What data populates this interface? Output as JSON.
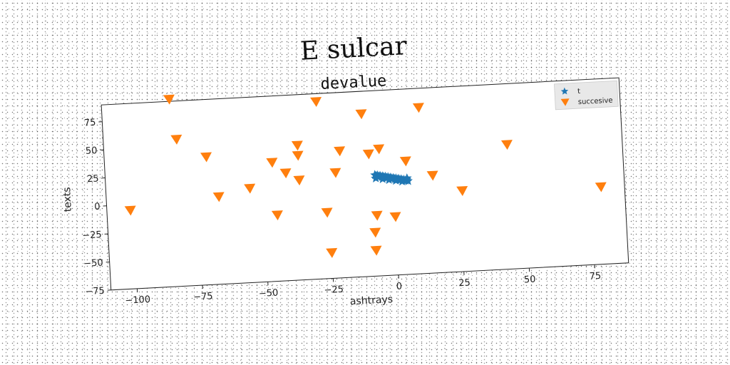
{
  "figure": {
    "suptitle": "E sulcar"
  },
  "colors": {
    "series_t": "#1f77b4",
    "series_succesive": "#ff7f0e",
    "axes": "#222222",
    "legend_bg": "#e8e8e8"
  },
  "chart_data": {
    "type": "scatter",
    "title": "devalue",
    "xlabel": "ashtrays",
    "ylabel": "texts",
    "xlim": [
      -110,
      88
    ],
    "ylim": [
      -75,
      90
    ],
    "xticks": [
      -100,
      -75,
      -50,
      -25,
      0,
      25,
      50,
      75
    ],
    "xtick_labels": [
      "−100",
      "−75",
      "−50",
      "−25",
      "0",
      "25",
      "50",
      "75"
    ],
    "yticks": [
      75,
      50,
      25,
      0,
      -25,
      -50,
      -75
    ],
    "ytick_labels": [
      "75",
      "50",
      "25",
      "0",
      "−25",
      "−50",
      "−75"
    ],
    "legend_position": "upper right",
    "series": [
      {
        "name": "t",
        "marker": "star",
        "color": "#1f77b4",
        "points": [
          [
            -7,
            15
          ],
          [
            -6.5,
            14
          ],
          [
            -6,
            14.5
          ],
          [
            -5.5,
            13.5
          ],
          [
            -5,
            14
          ],
          [
            -4.5,
            13
          ],
          [
            -4,
            13.5
          ],
          [
            -3.5,
            12.5
          ],
          [
            -3,
            13
          ],
          [
            -2.5,
            12
          ],
          [
            -2,
            12.5
          ],
          [
            -1.5,
            11.5
          ],
          [
            -1,
            12
          ],
          [
            -0.5,
            11
          ],
          [
            0,
            11.5
          ],
          [
            0.5,
            10.5
          ],
          [
            1,
            11
          ],
          [
            1.5,
            10
          ],
          [
            2,
            10.5
          ],
          [
            2.5,
            9.5
          ],
          [
            3,
            10
          ],
          [
            3.5,
            9
          ],
          [
            4,
            9.5
          ],
          [
            4.5,
            8.5
          ],
          [
            5,
            9
          ],
          [
            5.5,
            8
          ],
          [
            -6.8,
            12
          ],
          [
            -4.2,
            11
          ],
          [
            -1.8,
            10
          ],
          [
            0.8,
            9
          ],
          [
            3.2,
            8
          ],
          [
            5.2,
            10.5
          ]
        ]
      },
      {
        "name": "succesive",
        "marker": "triangle_down",
        "color": "#ff7f0e",
        "points": [
          [
            -84,
            92
          ],
          [
            -82,
            56
          ],
          [
            -71,
            39
          ],
          [
            -67,
            3
          ],
          [
            -101,
            -5
          ],
          [
            -55,
            9
          ],
          [
            -46,
            31
          ],
          [
            -45,
            -16
          ],
          [
            -41,
            21
          ],
          [
            -36,
            14
          ],
          [
            -36,
            45
          ],
          [
            -36,
            36
          ],
          [
            -28,
            83
          ],
          [
            -26,
            -16
          ],
          [
            -25,
            -52
          ],
          [
            -22,
            19
          ],
          [
            -20,
            38
          ],
          [
            -11,
            70
          ],
          [
            -9,
            34
          ],
          [
            -8,
            -36
          ],
          [
            -8,
            -52
          ],
          [
            -7,
            -21
          ],
          [
            -5,
            38
          ],
          [
            0,
            -23
          ],
          [
            5,
            26
          ],
          [
            11,
            73
          ],
          [
            15,
            12
          ],
          [
            26,
            -3
          ],
          [
            44,
            36
          ],
          [
            79,
            -6
          ]
        ]
      }
    ]
  }
}
